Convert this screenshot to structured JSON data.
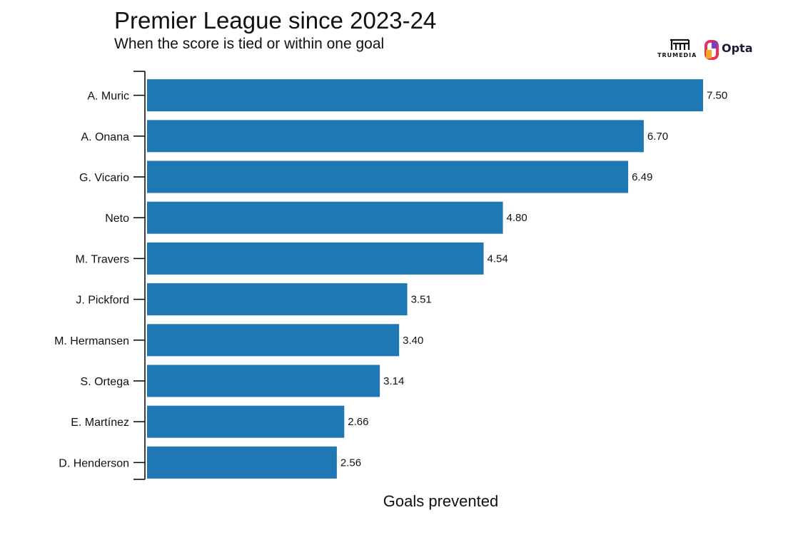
{
  "header": {
    "title": "Premier League since 2023-24",
    "subtitle": "When the score is tied or within one goal"
  },
  "logos": {
    "trumedia": "TRUMEDIA",
    "opta": "Opta",
    "opta_icon": "opta-logo-icon",
    "trumedia_icon": "trumedia-logo-icon"
  },
  "colors": {
    "bar": "#1f77b4",
    "axis": "#000000",
    "text": "#111111"
  },
  "chart_data": {
    "type": "bar",
    "orientation": "horizontal",
    "categories": [
      "A. Muric",
      "A. Onana",
      "G. Vicario",
      "Neto",
      "M. Travers",
      "J. Pickford",
      "M. Hermansen",
      "S. Ortega",
      "E. Martínez",
      "D. Henderson"
    ],
    "values": [
      7.5,
      6.7,
      6.49,
      4.8,
      4.54,
      3.51,
      3.4,
      3.14,
      2.66,
      2.56
    ],
    "value_labels": [
      "7.50",
      "6.70",
      "6.49",
      "4.80",
      "4.54",
      "3.51",
      "3.40",
      "3.14",
      "2.66",
      "2.56"
    ],
    "title": "Premier League since 2023-24",
    "subtitle": "When the score is tied or within one goal",
    "xlabel": "Goals prevented",
    "ylabel": "",
    "xlim": [
      0,
      7.5
    ],
    "grid": false,
    "legend": "none"
  }
}
